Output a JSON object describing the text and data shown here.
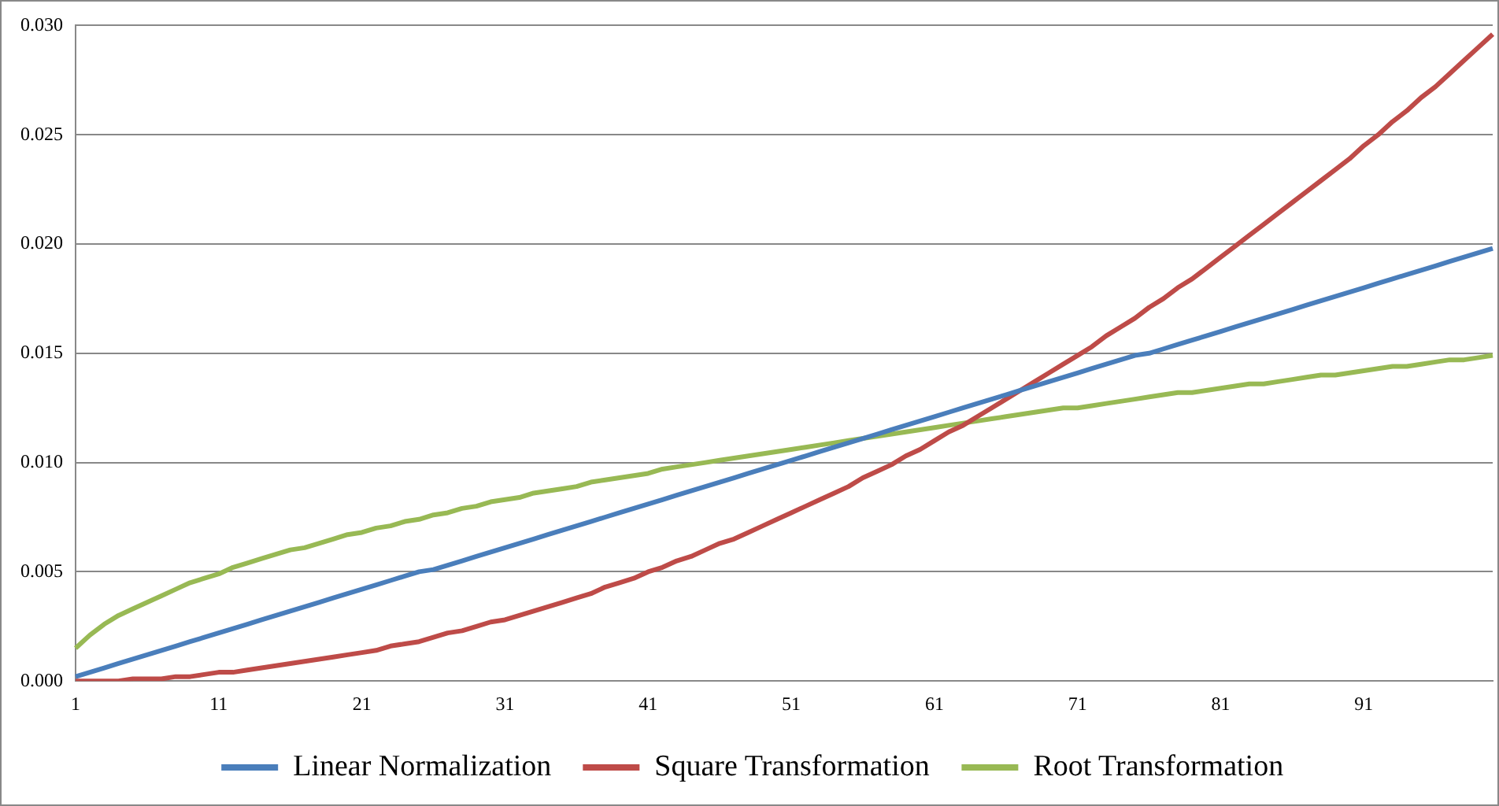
{
  "chart_data": {
    "type": "line",
    "categories": [
      "1",
      null,
      null,
      null,
      null,
      null,
      null,
      null,
      null,
      null,
      "11",
      null,
      null,
      null,
      null,
      null,
      null,
      null,
      null,
      null,
      "21",
      null,
      null,
      null,
      null,
      null,
      null,
      null,
      null,
      null,
      "31",
      null,
      null,
      null,
      null,
      null,
      null,
      null,
      null,
      null,
      "41",
      null,
      null,
      null,
      null,
      null,
      null,
      null,
      null,
      null,
      "51",
      null,
      null,
      null,
      null,
      null,
      null,
      null,
      null,
      null,
      "61",
      null,
      null,
      null,
      null,
      null,
      null,
      null,
      null,
      null,
      "71",
      null,
      null,
      null,
      null,
      null,
      null,
      null,
      null,
      null,
      "81",
      null,
      null,
      null,
      null,
      null,
      null,
      null,
      null,
      null,
      "91",
      null,
      null,
      null,
      null,
      null,
      null,
      null,
      null,
      null
    ],
    "ylim": [
      0,
      0.03
    ],
    "yticks": [
      {
        "value": 0,
        "label": "0.000"
      },
      {
        "value": 0.005,
        "label": "0.005"
      },
      {
        "value": 0.01,
        "label": "0.010"
      },
      {
        "value": 0.015,
        "label": "0.015"
      },
      {
        "value": 0.02,
        "label": "0.020"
      },
      {
        "value": 0.025,
        "label": "0.025"
      },
      {
        "value": 0.03,
        "label": "0.030"
      }
    ],
    "grid": "y",
    "legend": "bottom",
    "marker": "none",
    "line_style": "solid",
    "series": [
      {
        "name": "Linear Normalization",
        "color": "#4a7ebb",
        "values": [
          0.0002,
          0.0004,
          0.0006,
          0.0008,
          0.001,
          0.0012,
          0.0014,
          0.0016,
          0.0018,
          0.002,
          0.0022,
          0.0024,
          0.0026,
          0.0028,
          0.003,
          0.0032,
          0.0034,
          0.0036,
          0.0038,
          0.004,
          0.0042,
          0.0044,
          0.0046,
          0.0048,
          0.005,
          0.0051,
          0.0053,
          0.0055,
          0.0057,
          0.0059,
          0.0061,
          0.0063,
          0.0065,
          0.0067,
          0.0069,
          0.0071,
          0.0073,
          0.0075,
          0.0077,
          0.0079,
          0.0081,
          0.0083,
          0.0085,
          0.0087,
          0.0089,
          0.0091,
          0.0093,
          0.0095,
          0.0097,
          0.0099,
          0.0101,
          0.0103,
          0.0105,
          0.0107,
          0.0109,
          0.0111,
          0.0113,
          0.0115,
          0.0117,
          0.0119,
          0.0121,
          0.0123,
          0.0125,
          0.0127,
          0.0129,
          0.0131,
          0.0133,
          0.0135,
          0.0137,
          0.0139,
          0.0141,
          0.0143,
          0.0145,
          0.0147,
          0.0149,
          0.015,
          0.0152,
          0.0154,
          0.0156,
          0.0158,
          0.016,
          0.0162,
          0.0164,
          0.0166,
          0.0168,
          0.017,
          0.0172,
          0.0174,
          0.0176,
          0.0178,
          0.018,
          0.0182,
          0.0184,
          0.0186,
          0.0188,
          0.019,
          0.0192,
          0.0194,
          0.0196,
          0.0198
        ]
      },
      {
        "name": "Square Transformation",
        "color": "#be4b48",
        "values": [
          0.0,
          0.0,
          0.0,
          0.0,
          0.0001,
          0.0001,
          0.0001,
          0.0002,
          0.0002,
          0.0003,
          0.0004,
          0.0004,
          0.0005,
          0.0006,
          0.0007,
          0.0008,
          0.0009,
          0.001,
          0.0011,
          0.0012,
          0.0013,
          0.0014,
          0.0016,
          0.0017,
          0.0018,
          0.002,
          0.0022,
          0.0023,
          0.0025,
          0.0027,
          0.0028,
          0.003,
          0.0032,
          0.0034,
          0.0036,
          0.0038,
          0.004,
          0.0043,
          0.0045,
          0.0047,
          0.005,
          0.0052,
          0.0055,
          0.0057,
          0.006,
          0.0063,
          0.0065,
          0.0068,
          0.0071,
          0.0074,
          0.0077,
          0.008,
          0.0083,
          0.0086,
          0.0089,
          0.0093,
          0.0096,
          0.0099,
          0.0103,
          0.0106,
          0.011,
          0.0114,
          0.0117,
          0.0121,
          0.0125,
          0.0129,
          0.0133,
          0.0137,
          0.0141,
          0.0145,
          0.0149,
          0.0153,
          0.0158,
          0.0162,
          0.0166,
          0.0171,
          0.0175,
          0.018,
          0.0184,
          0.0189,
          0.0194,
          0.0199,
          0.0204,
          0.0209,
          0.0214,
          0.0219,
          0.0224,
          0.0229,
          0.0234,
          0.0239,
          0.0245,
          0.025,
          0.0256,
          0.0261,
          0.0267,
          0.0272,
          0.0278,
          0.0284,
          0.029,
          0.0296
        ]
      },
      {
        "name": "Root Transformation",
        "color": "#98b954",
        "values": [
          0.0015,
          0.0021,
          0.0026,
          0.003,
          0.0033,
          0.0036,
          0.0039,
          0.0042,
          0.0045,
          0.0047,
          0.0049,
          0.0052,
          0.0054,
          0.0056,
          0.0058,
          0.006,
          0.0061,
          0.0063,
          0.0065,
          0.0067,
          0.0068,
          0.007,
          0.0071,
          0.0073,
          0.0074,
          0.0076,
          0.0077,
          0.0079,
          0.008,
          0.0082,
          0.0083,
          0.0084,
          0.0086,
          0.0087,
          0.0088,
          0.0089,
          0.0091,
          0.0092,
          0.0093,
          0.0094,
          0.0095,
          0.0097,
          0.0098,
          0.0099,
          0.01,
          0.0101,
          0.0102,
          0.0103,
          0.0104,
          0.0105,
          0.0106,
          0.0107,
          0.0108,
          0.0109,
          0.011,
          0.0111,
          0.0112,
          0.0113,
          0.0114,
          0.0115,
          0.0116,
          0.0117,
          0.0118,
          0.0119,
          0.012,
          0.0121,
          0.0122,
          0.0123,
          0.0124,
          0.0125,
          0.0125,
          0.0126,
          0.0127,
          0.0128,
          0.0129,
          0.013,
          0.0131,
          0.0132,
          0.0132,
          0.0133,
          0.0134,
          0.0135,
          0.0136,
          0.0136,
          0.0137,
          0.0138,
          0.0139,
          0.014,
          0.014,
          0.0141,
          0.0142,
          0.0143,
          0.0144,
          0.0144,
          0.0145,
          0.0146,
          0.0147,
          0.0147,
          0.0148,
          0.0149
        ]
      }
    ]
  }
}
